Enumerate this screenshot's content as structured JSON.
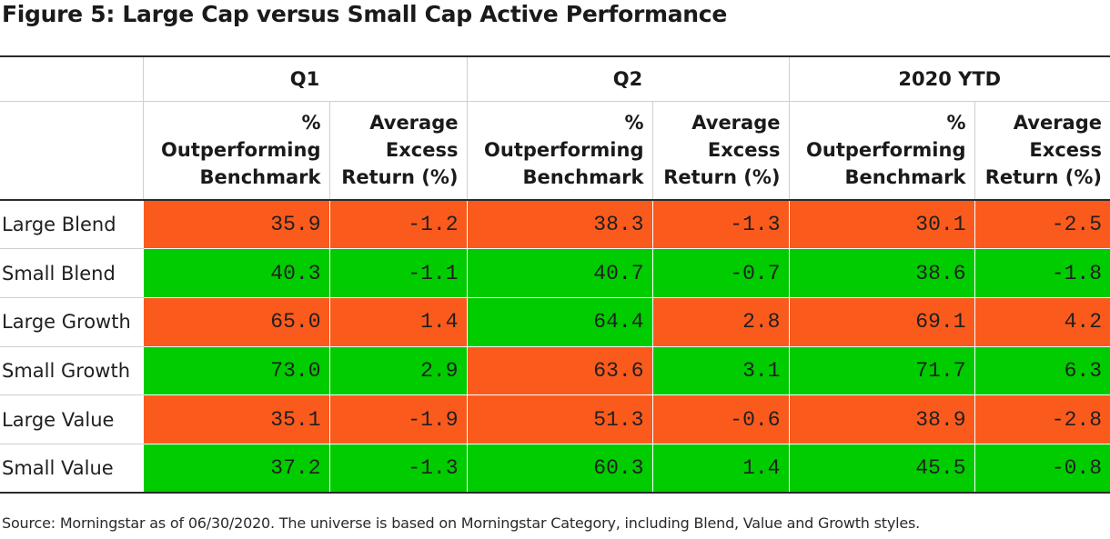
{
  "title": "Figure 5: Large Cap versus Small Cap Active Performance",
  "source": "Source: Morningstar as of 06/30/2020. The universe is based on Morningstar Category, including Blend, Value and Growth styles.",
  "colors": {
    "underperform": "#fb5a1d",
    "outperform": "#00cc00"
  },
  "chart_data": {
    "type": "table",
    "title": "Figure 5: Large Cap versus Small Cap Active Performance",
    "periods": [
      "Q1",
      "Q2",
      "2020 YTD"
    ],
    "columns": [
      "% Outperforming Benchmark",
      "Average Excess Return (%)"
    ],
    "rows": [
      {
        "label": "Large Blend",
        "values": [
          "35.9",
          "-1.2",
          "38.3",
          "-1.3",
          "30.1",
          "-2.5"
        ],
        "colors": [
          "underperform",
          "underperform",
          "underperform",
          "underperform",
          "underperform",
          "underperform"
        ]
      },
      {
        "label": "Small Blend",
        "values": [
          "40.3",
          "-1.1",
          "40.7",
          "-0.7",
          "38.6",
          "-1.8"
        ],
        "colors": [
          "outperform",
          "outperform",
          "outperform",
          "outperform",
          "outperform",
          "outperform"
        ]
      },
      {
        "label": "Large Growth",
        "values": [
          "65.0",
          "1.4",
          "64.4",
          "2.8",
          "69.1",
          "4.2"
        ],
        "colors": [
          "underperform",
          "underperform",
          "outperform",
          "underperform",
          "underperform",
          "underperform"
        ]
      },
      {
        "label": "Small Growth",
        "values": [
          "73.0",
          "2.9",
          "63.6",
          "3.1",
          "71.7",
          "6.3"
        ],
        "colors": [
          "outperform",
          "outperform",
          "underperform",
          "outperform",
          "outperform",
          "outperform"
        ]
      },
      {
        "label": "Large Value",
        "values": [
          "35.1",
          "-1.9",
          "51.3",
          "-0.6",
          "38.9",
          "-2.8"
        ],
        "colors": [
          "underperform",
          "underperform",
          "underperform",
          "underperform",
          "underperform",
          "underperform"
        ]
      },
      {
        "label": "Small Value",
        "values": [
          "37.2",
          "-1.3",
          "60.3",
          "1.4",
          "45.5",
          "-0.8"
        ],
        "colors": [
          "outperform",
          "outperform",
          "outperform",
          "outperform",
          "outperform",
          "outperform"
        ]
      }
    ]
  }
}
